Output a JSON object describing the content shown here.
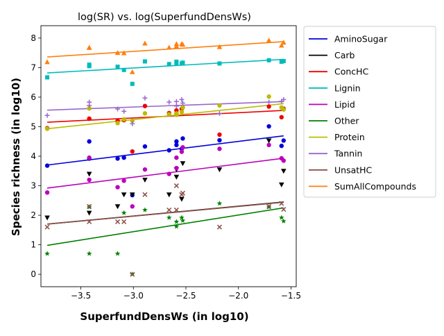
{
  "chart_data": {
    "type": "scatter",
    "title": "log(SR) vs. log(SuperfundDensWs)",
    "xlabel": "SuperfundDensWs (in log10)",
    "ylabel": "Species richness (in log10)",
    "xlim": [
      -3.88,
      -1.45
    ],
    "ylim": [
      -0.42,
      8.42
    ],
    "xticks": [
      -3.5,
      -3.0,
      -2.5,
      -2.0,
      -1.5
    ],
    "xtick_labels": [
      "−3.5",
      "−3.0",
      "−2.5",
      "−2.0",
      "−1.5"
    ],
    "yticks": [
      0,
      1,
      2,
      3,
      4,
      5,
      6,
      7,
      8
    ],
    "ytick_labels": [
      "0",
      "1",
      "2",
      "3",
      "4",
      "5",
      "6",
      "7",
      "8"
    ],
    "grid": false,
    "legend_position": "outside-right",
    "x": [
      -3.82,
      -3.42,
      -3.42,
      -3.15,
      -3.09,
      -3.01,
      -2.89,
      -2.66,
      -2.59,
      -2.59,
      -2.54,
      -2.53,
      -2.18,
      -1.71,
      -1.59,
      -1.57
    ],
    "series": [
      {
        "name": "AminoSugar",
        "color": "#0000dd",
        "marker": "circle",
        "values": [
          3.68,
          4.5,
          3.92,
          3.92,
          3.95,
          2.68,
          4.33,
          4.2,
          4.38,
          4.5,
          4.25,
          4.6,
          4.54,
          5.01,
          4.35,
          4.53
        ],
        "fit": [
          3.7,
          4.69
        ]
      },
      {
        "name": "Carb",
        "color": "#000000",
        "marker": "triangle-down",
        "values": [
          1.92,
          2.08,
          3.4,
          2.3,
          2.7,
          2.7,
          3.2,
          2.7,
          3.3,
          3.55,
          2.55,
          3.76,
          3.55,
          4.53,
          3.04,
          3.5
        ],
        "fit": [
          1.7,
          2.45
        ]
      },
      {
        "name": "ConcHC",
        "color": "#ee0000",
        "marker": "circle",
        "values": [
          4.95,
          5.27,
          5.27,
          5.2,
          5.22,
          4.16,
          5.7,
          5.46,
          5.55,
          5.45,
          5.6,
          5.65,
          4.73,
          5.68,
          5.32,
          5.61
        ],
        "fit": [
          5.15,
          5.55
        ]
      },
      {
        "name": "Lignin",
        "color": "#00bbbb",
        "marker": "square",
        "values": [
          6.67,
          7.1,
          7.05,
          7.03,
          6.92,
          6.45,
          7.21,
          7.12,
          7.2,
          7.15,
          7.14,
          7.17,
          7.14,
          7.25,
          7.2,
          7.22
        ],
        "fit": [
          6.82,
          7.28
        ]
      },
      {
        "name": "Lipid",
        "color": "#bb00bb",
        "marker": "circle",
        "values": [
          2.77,
          3.95,
          3.2,
          2.95,
          3.17,
          2.3,
          3.55,
          3.4,
          3.95,
          3.6,
          4.15,
          4.3,
          4.25,
          4.38,
          3.93,
          3.85
        ],
        "fit": [
          2.92,
          3.93
        ]
      },
      {
        "name": "Other",
        "color": "#008000",
        "marker": "star",
        "values": [
          0.7,
          0.7,
          2.28,
          0.7,
          2.08,
          0.0,
          2.18,
          1.92,
          1.78,
          1.62,
          1.92,
          1.82,
          2.4,
          2.28,
          1.92,
          1.8
        ],
        "fit": [
          0.98,
          2.25
        ]
      },
      {
        "name": "Protein",
        "color": "#bbbb00",
        "marker": "circle",
        "values": [
          4.93,
          5.62,
          5.62,
          5.12,
          5.25,
          5.2,
          5.45,
          5.42,
          5.4,
          5.45,
          5.5,
          5.65,
          5.72,
          6.02,
          5.65,
          5.58
        ],
        "fit": [
          4.93,
          5.78
        ]
      },
      {
        "name": "Tannin",
        "color": "#9966cc",
        "marker": "plus",
        "values": [
          5.38,
          5.83,
          5.72,
          5.6,
          5.52,
          5.1,
          5.97,
          5.83,
          5.85,
          5.7,
          5.92,
          5.8,
          5.45,
          5.83,
          5.86,
          5.92
        ],
        "fit": [
          5.56,
          5.85
        ]
      },
      {
        "name": "UnsatHC",
        "color": "#8b5048",
        "marker": "x",
        "values": [
          1.6,
          2.3,
          1.78,
          1.78,
          1.78,
          0.0,
          2.7,
          2.18,
          3.0,
          2.18,
          2.7,
          2.75,
          1.6,
          2.3,
          2.4,
          2.2
        ],
        "fit": [
          1.7,
          2.44
        ]
      },
      {
        "name": "SumAllCompounds",
        "color": "#ff7f0e",
        "marker": "triangle-up",
        "values": [
          7.19,
          7.67,
          7.68,
          7.5,
          7.49,
          6.85,
          7.82,
          7.68,
          7.8,
          7.72,
          7.8,
          7.78,
          7.7,
          7.92,
          7.75,
          7.85
        ],
        "fit": [
          7.36,
          7.88
        ]
      }
    ]
  }
}
